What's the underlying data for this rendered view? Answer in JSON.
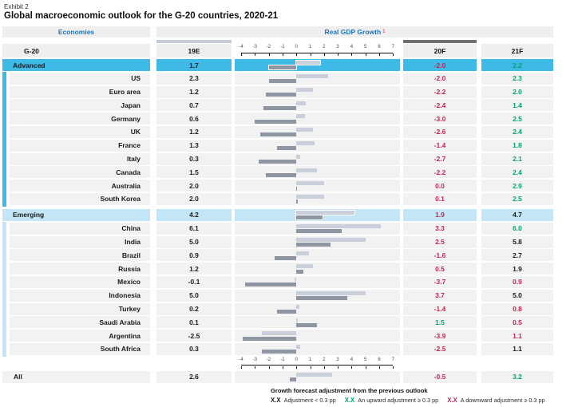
{
  "exhibit": "Exhibit 2",
  "title": "Global macroeconomic outlook for the G-20 countries, 2020-21",
  "header": {
    "economies": "Economies",
    "gdp_label": "Real GDP Growth",
    "gdp_footnote": "1",
    "group_label": "G-20",
    "col_19e": "19E",
    "col_20f": "20F",
    "col_21f": "21F"
  },
  "axis": {
    "min": -4,
    "max": 7,
    "ticks": [
      -4,
      -3,
      -2,
      -1,
      0,
      1,
      2,
      3,
      4,
      5,
      6,
      7
    ]
  },
  "colors": {
    "advanced_row": "#3fb9e5",
    "emerging_row": "#c2e6f6",
    "row_gray": "#f2f2f3",
    "header_gray": "#efefef",
    "bar_19e": "#cad0db",
    "bar_20f": "#8e95a3",
    "downward": "#c2254f",
    "upward": "#00a273",
    "header_blue": "#1c75bc",
    "footnote_pink": "#e0558a"
  },
  "rows": [
    {
      "label": "Advanced",
      "type": "group-adv",
      "e19": "1.7",
      "f20": "-2.0",
      "f21": "2.2",
      "f20c": "down",
      "f21c": "up"
    },
    {
      "label": "US",
      "type": "cty-adv",
      "e19": "2.3",
      "f20": "-2.0",
      "f21": "2.3",
      "f20c": "down",
      "f21c": "up"
    },
    {
      "label": "Euro area",
      "type": "cty-adv",
      "e19": "1.2",
      "f20": "-2.2",
      "f21": "2.0",
      "f20c": "down",
      "f21c": "up"
    },
    {
      "label": "Japan",
      "type": "cty-adv",
      "e19": "0.7",
      "f20": "-2.4",
      "f21": "1.4",
      "f20c": "down",
      "f21c": "up"
    },
    {
      "label": "Germany",
      "type": "cty-adv",
      "e19": "0.6",
      "f20": "-3.0",
      "f21": "2.5",
      "f20c": "down",
      "f21c": "up"
    },
    {
      "label": "UK",
      "type": "cty-adv",
      "e19": "1.2",
      "f20": "-2.6",
      "f21": "2.4",
      "f20c": "down",
      "f21c": "up"
    },
    {
      "label": "France",
      "type": "cty-adv",
      "e19": "1.3",
      "f20": "-1.4",
      "f21": "1.8",
      "f20c": "down",
      "f21c": "up"
    },
    {
      "label": "Italy",
      "type": "cty-adv",
      "e19": "0.3",
      "f20": "-2.7",
      "f21": "2.1",
      "f20c": "down",
      "f21c": "up"
    },
    {
      "label": "Canada",
      "type": "cty-adv",
      "e19": "1.5",
      "f20": "-2.2",
      "f21": "2.4",
      "f20c": "down",
      "f21c": "up"
    },
    {
      "label": "Australia",
      "type": "cty-adv",
      "e19": "2.0",
      "f20": "0.0",
      "f21": "2.9",
      "f20c": "down",
      "f21c": "up"
    },
    {
      "label": "South Korea",
      "type": "cty-adv",
      "e19": "2.0",
      "f20": "0.1",
      "f21": "2.5",
      "f20c": "down",
      "f21c": "up"
    },
    {
      "label": "Emerging",
      "type": "group-emg",
      "e19": "4.2",
      "f20": "1.9",
      "f21": "4.7",
      "f20c": "down",
      "f21c": "flat"
    },
    {
      "label": "China",
      "type": "cty-emg",
      "e19": "6.1",
      "f20": "3.3",
      "f21": "6.0",
      "f20c": "down",
      "f21c": "up"
    },
    {
      "label": "India",
      "type": "cty-emg",
      "e19": "5.0",
      "f20": "2.5",
      "f21": "5.8",
      "f20c": "down",
      "f21c": "flat"
    },
    {
      "label": "Brazil",
      "type": "cty-emg",
      "e19": "0.9",
      "f20": "-1.6",
      "f21": "2.7",
      "f20c": "down",
      "f21c": "flat"
    },
    {
      "label": "Russia",
      "type": "cty-emg",
      "e19": "1.2",
      "f20": "0.5",
      "f21": "1.9",
      "f20c": "down",
      "f21c": "flat"
    },
    {
      "label": "Mexico",
      "type": "cty-emg",
      "e19": "-0.1",
      "f20": "-3.7",
      "f21": "0.9",
      "f20c": "down",
      "f21c": "down"
    },
    {
      "label": "Indonesia",
      "type": "cty-emg",
      "e19": "5.0",
      "f20": "3.7",
      "f21": "5.0",
      "f20c": "down",
      "f21c": "flat"
    },
    {
      "label": "Turkey",
      "type": "cty-emg",
      "e19": "0.2",
      "f20": "-1.4",
      "f21": "0.8",
      "f20c": "down",
      "f21c": "down"
    },
    {
      "label": "Saudi Arabia",
      "type": "cty-emg",
      "e19": "0.1",
      "f20": "1.5",
      "f21": "0.5",
      "f20c": "up",
      "f21c": "down"
    },
    {
      "label": "Argentina",
      "type": "cty-emg",
      "e19": "-2.5",
      "f20": "-3.9",
      "f21": "1.1",
      "f20c": "down",
      "f21c": "down"
    },
    {
      "label": "South Africa",
      "type": "cty-emg",
      "e19": "0.3",
      "f20": "-2.5",
      "f21": "1.1",
      "f20c": "down",
      "f21c": "flat"
    }
  ],
  "all_row": {
    "label": "All",
    "type": "all",
    "e19": "2.6",
    "f20": "-0.5",
    "f21": "3.2",
    "f20c": "down",
    "f21c": "up"
  },
  "legend": {
    "title": "Growth forecast adjustment from the previous outlook",
    "items": [
      {
        "symbol": "X.X",
        "type": "flat",
        "label": "Adjustment < 0.3 pp"
      },
      {
        "symbol": "X.X",
        "type": "up",
        "label": "An upward adjustment ≥ 0.3 pp"
      },
      {
        "symbol": "X.X",
        "type": "down",
        "label": "A downward adjustment ≥ 0.3 pp"
      }
    ]
  },
  "chart_data": {
    "type": "bar",
    "orientation": "horizontal",
    "title": "Global macroeconomic outlook for the G-20 countries, 2020-21",
    "xlabel": "Real GDP Growth (%)",
    "xlim": [
      -4,
      7
    ],
    "x_ticks": [
      -4,
      -3,
      -2,
      -1,
      0,
      1,
      2,
      3,
      4,
      5,
      6,
      7
    ],
    "grid": false,
    "categories": [
      "Advanced",
      "US",
      "Euro area",
      "Japan",
      "Germany",
      "UK",
      "France",
      "Italy",
      "Canada",
      "Australia",
      "South Korea",
      "Emerging",
      "China",
      "India",
      "Brazil",
      "Russia",
      "Mexico",
      "Indonesia",
      "Turkey",
      "Saudi Arabia",
      "Argentina",
      "South Africa",
      "All"
    ],
    "series": [
      {
        "name": "19E",
        "plotted_as_bar": true,
        "values": [
          1.7,
          2.3,
          1.2,
          0.7,
          0.6,
          1.2,
          1.3,
          0.3,
          1.5,
          2.0,
          2.0,
          4.2,
          6.1,
          5.0,
          0.9,
          1.2,
          -0.1,
          5.0,
          0.2,
          0.1,
          -2.5,
          0.3,
          2.6
        ]
      },
      {
        "name": "20F",
        "plotted_as_bar": true,
        "values": [
          -2.0,
          -2.0,
          -2.2,
          -2.4,
          -3.0,
          -2.6,
          -1.4,
          -2.7,
          -2.2,
          0.0,
          0.1,
          1.9,
          3.3,
          2.5,
          -1.6,
          0.5,
          -3.7,
          3.7,
          -1.4,
          1.5,
          -3.9,
          -2.5,
          -0.5
        ]
      },
      {
        "name": "21F",
        "plotted_as_bar": false,
        "values": [
          2.2,
          2.3,
          2.0,
          1.4,
          2.5,
          2.4,
          1.8,
          2.1,
          2.4,
          2.9,
          2.5,
          4.7,
          6.0,
          5.8,
          2.7,
          1.9,
          0.9,
          5.0,
          0.8,
          0.5,
          1.1,
          1.1,
          3.2
        ]
      }
    ],
    "legend_position": "bottom"
  }
}
